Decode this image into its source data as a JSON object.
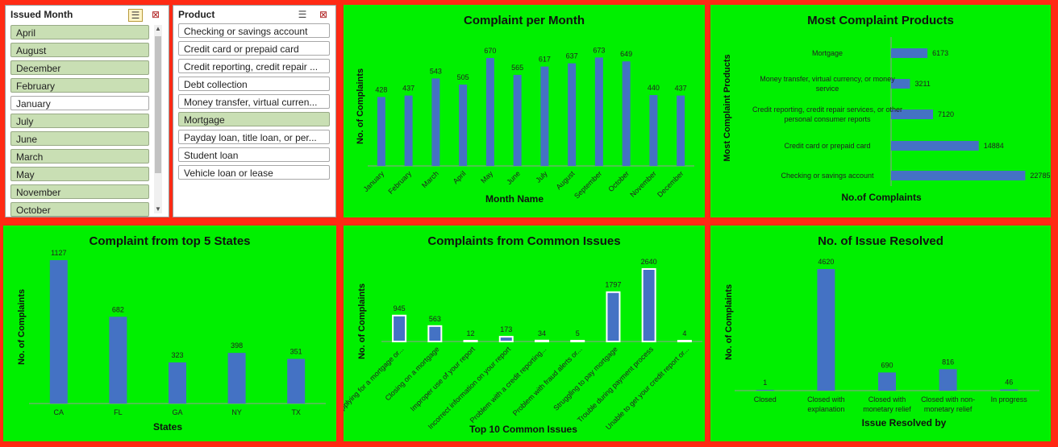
{
  "slicers": {
    "month": {
      "title": "Issued Month",
      "items": [
        {
          "label": "April",
          "selected": true
        },
        {
          "label": "August",
          "selected": true
        },
        {
          "label": "December",
          "selected": true
        },
        {
          "label": "February",
          "selected": true
        },
        {
          "label": "January",
          "selected": false
        },
        {
          "label": "July",
          "selected": true
        },
        {
          "label": "June",
          "selected": true
        },
        {
          "label": "March",
          "selected": true
        },
        {
          "label": "May",
          "selected": true
        },
        {
          "label": "November",
          "selected": true
        },
        {
          "label": "October",
          "selected": true
        }
      ]
    },
    "product": {
      "title": "Product",
      "items": [
        {
          "label": "Checking or savings account",
          "selected": false
        },
        {
          "label": "Credit card or prepaid card",
          "selected": false
        },
        {
          "label": "Credit reporting, credit repair ...",
          "selected": false
        },
        {
          "label": "Debt collection",
          "selected": false
        },
        {
          "label": "Money transfer, virtual curren...",
          "selected": false
        },
        {
          "label": "Mortgage",
          "selected": true
        },
        {
          "label": "Payday loan, title loan, or per...",
          "selected": false
        },
        {
          "label": "Student loan",
          "selected": false
        },
        {
          "label": "Vehicle loan or lease",
          "selected": false
        }
      ]
    }
  },
  "colors": {
    "bar": "#4472c4",
    "panel": "#00f000",
    "background": "#ff2a14",
    "selected": "#c9dfb4"
  },
  "chart_data": [
    {
      "id": "month",
      "type": "bar",
      "title": "Complaint per Month",
      "xlabel": "Month Name",
      "ylabel": "No. of Complaints",
      "categories": [
        "January",
        "February",
        "March",
        "April",
        "May",
        "June",
        "July",
        "August",
        "September",
        "October",
        "November",
        "December"
      ],
      "values": [
        428,
        437,
        543,
        505,
        670,
        565,
        617,
        637,
        673,
        649,
        440,
        437
      ],
      "ylim": [
        0,
        700
      ]
    },
    {
      "id": "products",
      "type": "bar",
      "orientation": "horizontal",
      "title": "Most Complaint Products",
      "xlabel": "No.of Complaints",
      "ylabel": "Most Complaint Products",
      "categories": [
        [
          "Mortgage"
        ],
        [
          "Money transfer, virtual currency, or money",
          "service"
        ],
        [
          "Credit reporting, credit repair services, or other",
          "personal consumer reports"
        ],
        [
          "Credit card or prepaid card"
        ],
        [
          "Checking or savings account"
        ]
      ],
      "values": [
        6173,
        3211,
        7120,
        14884,
        22785
      ],
      "xlim": [
        0,
        23000
      ]
    },
    {
      "id": "states",
      "type": "bar",
      "title": "Complaint from top 5 States",
      "xlabel": "States",
      "ylabel": "No. of Complaints",
      "categories": [
        "CA",
        "FL",
        "GA",
        "NY",
        "TX"
      ],
      "values": [
        1127,
        682,
        323,
        398,
        351
      ],
      "ylim": [
        0,
        1127
      ]
    },
    {
      "id": "issues",
      "type": "bar",
      "title": "Complaints from Common Issues",
      "xlabel": "Top 10 Common Issues",
      "ylabel": "No. of Complaints",
      "categories": [
        "Applying for a mortgage or...",
        "Closing on a mortgage",
        "Improper use of your report",
        "Incorrect information on your report",
        "Problem with a credit reporting...",
        "Problem with fraud alerts or...",
        "Struggling to pay mortgage",
        "Trouble during payment process",
        "Unable to get your credit report or..."
      ],
      "values": [
        945,
        563,
        12,
        173,
        34,
        5,
        1797,
        2640,
        4
      ],
      "ylim": [
        0,
        2640
      ]
    },
    {
      "id": "resolved",
      "type": "bar",
      "title": "No. of Issue Resolved",
      "xlabel": "Issue Resolved by",
      "ylabel": "No. of Complaints",
      "categories": [
        [
          "Closed"
        ],
        [
          "Closed with",
          "explanation"
        ],
        [
          "Closed with",
          "monetary relief"
        ],
        [
          "Closed with non-",
          "monetary relief"
        ],
        [
          "In progress"
        ]
      ],
      "values": [
        1,
        4620,
        690,
        816,
        46
      ],
      "ylim": [
        0,
        4620
      ]
    }
  ]
}
